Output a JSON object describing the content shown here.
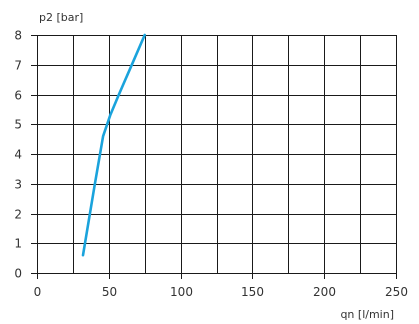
{
  "chart_data": {
    "type": "line",
    "xlabel": "qn [l/min]",
    "ylabel": "p2 [bar]",
    "xlim": [
      0,
      250
    ],
    "ylim": [
      0,
      8
    ],
    "x_ticks": [
      0,
      50,
      100,
      150,
      200,
      250
    ],
    "y_ticks": [
      0,
      1,
      2,
      3,
      4,
      5,
      6,
      7,
      8
    ],
    "x_grid_step": 25,
    "grid": true,
    "series": [
      {
        "color": "#1aa3dc",
        "points": [
          {
            "x": 32,
            "y": 0.6
          },
          {
            "x": 40,
            "y": 2.9
          },
          {
            "x": 46,
            "y": 4.6
          },
          {
            "x": 51,
            "y": 5.3
          },
          {
            "x": 57,
            "y": 6.0
          },
          {
            "x": 66,
            "y": 7.0
          },
          {
            "x": 75,
            "y": 8.0
          }
        ]
      }
    ]
  }
}
